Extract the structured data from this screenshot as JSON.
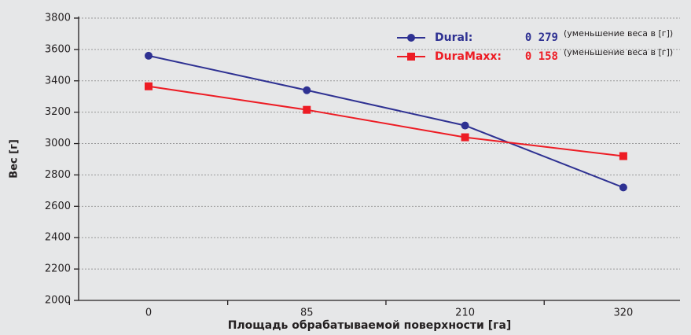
{
  "chart_data": {
    "type": "line",
    "x_label": "Площадь обрабатываемой поверхности [га]",
    "y_label": "Вес [г]",
    "categories": [
      "0",
      "85",
      "210",
      "320"
    ],
    "series": [
      {
        "name": "Dural:",
        "color": "#2e3192",
        "marker": "circle",
        "legend_value": "0 279",
        "legend_note": "(уменьшение веса в [г])",
        "values": [
          3560,
          3340,
          3115,
          2720
        ]
      },
      {
        "name": "DuraMaxx:",
        "color": "#ed1c24",
        "marker": "square",
        "legend_value": "0 158",
        "legend_note": "(уменьшение веса в [г])",
        "values": [
          3365,
          3215,
          3040,
          2920
        ]
      }
    ],
    "ylim": [
      2000,
      3800
    ],
    "yticks": [
      2000,
      2200,
      2400,
      2600,
      2800,
      3000,
      3200,
      3400,
      3600,
      3800
    ],
    "grid": true,
    "legend": "upper right"
  }
}
